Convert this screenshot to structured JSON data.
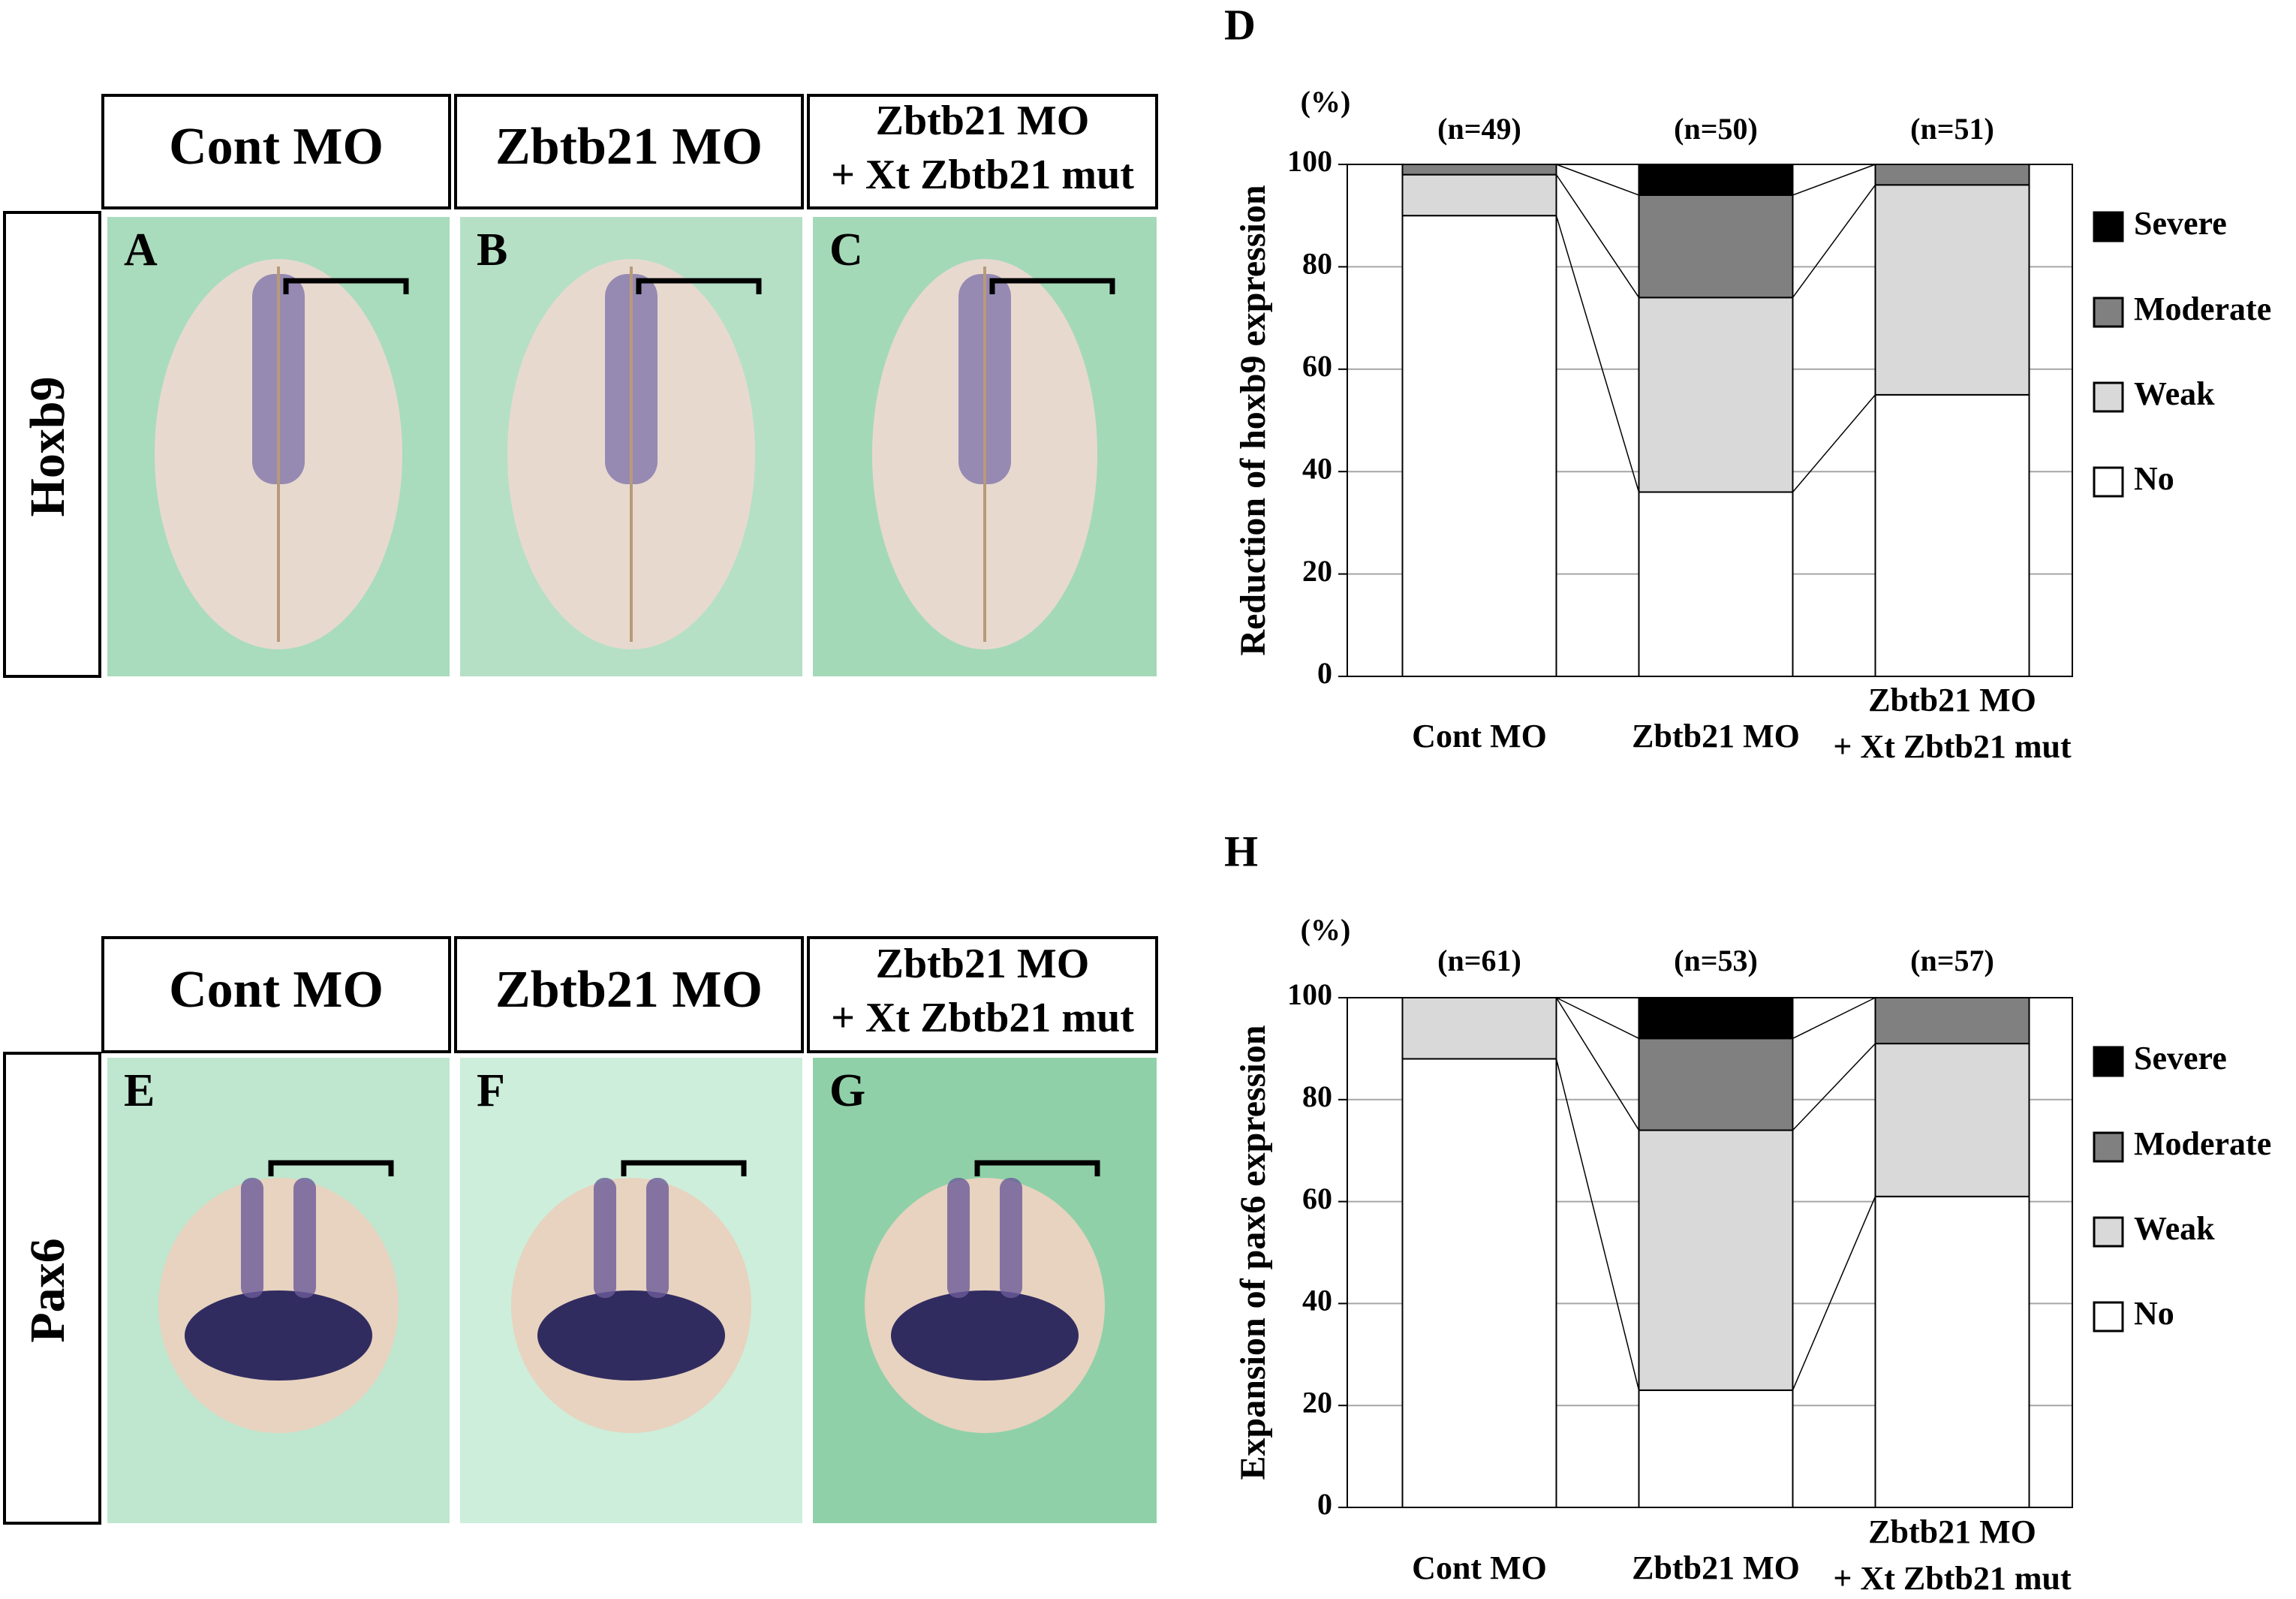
{
  "panels": {
    "columns": [
      [
        "Cont MO"
      ],
      [
        "Zbtb21 MO"
      ],
      [
        "Zbtb21 MO",
        "+ Xt Zbtb21 mut"
      ]
    ],
    "rows": [
      "Hoxb9",
      "Pax6"
    ],
    "letters": [
      [
        "A",
        "B",
        "C"
      ],
      [
        "E",
        "F",
        "G"
      ]
    ]
  },
  "chart_data": [
    {
      "type": "bar",
      "stacked": true,
      "title": "D",
      "unit_label": "(%)",
      "ylabel": "Reduction of hoxb9 expression",
      "categories": [
        "Cont MO",
        "Zbtb21 MO",
        "Zbtb21 MO + Xt Zbtb21 mut"
      ],
      "n_labels": [
        "(n=49)",
        "(n=50)",
        "(n=51)"
      ],
      "series": [
        {
          "name": "No",
          "color": "#ffffff",
          "values": [
            90,
            36,
            55
          ]
        },
        {
          "name": "Weak",
          "color": "#d9d9d9",
          "values": [
            8,
            38,
            41
          ]
        },
        {
          "name": "Moderate",
          "color": "#808080",
          "values": [
            2,
            20,
            4
          ]
        },
        {
          "name": "Severe",
          "color": "#000000",
          "values": [
            0,
            6,
            0
          ]
        }
      ],
      "ylim": [
        0,
        100
      ],
      "yticks": [
        0,
        20,
        40,
        60,
        80,
        100
      ],
      "grid": true
    },
    {
      "type": "bar",
      "stacked": true,
      "title": "H",
      "unit_label": "(%)",
      "ylabel": "Expansion of pax6 expression",
      "categories": [
        "Cont MO",
        "Zbtb21 MO",
        "Zbtb21 MO + Xt Zbtb21 mut"
      ],
      "n_labels": [
        "(n=61)",
        "(n=53)",
        "(n=57)"
      ],
      "series": [
        {
          "name": "No",
          "color": "#ffffff",
          "values": [
            88,
            23,
            61
          ]
        },
        {
          "name": "Weak",
          "color": "#d9d9d9",
          "values": [
            12,
            51,
            30
          ]
        },
        {
          "name": "Moderate",
          "color": "#808080",
          "values": [
            0,
            18,
            9
          ]
        },
        {
          "name": "Severe",
          "color": "#000000",
          "values": [
            0,
            8,
            0
          ]
        }
      ],
      "ylim": [
        0,
        100
      ],
      "yticks": [
        0,
        20,
        40,
        60,
        80,
        100
      ],
      "grid": true
    }
  ]
}
